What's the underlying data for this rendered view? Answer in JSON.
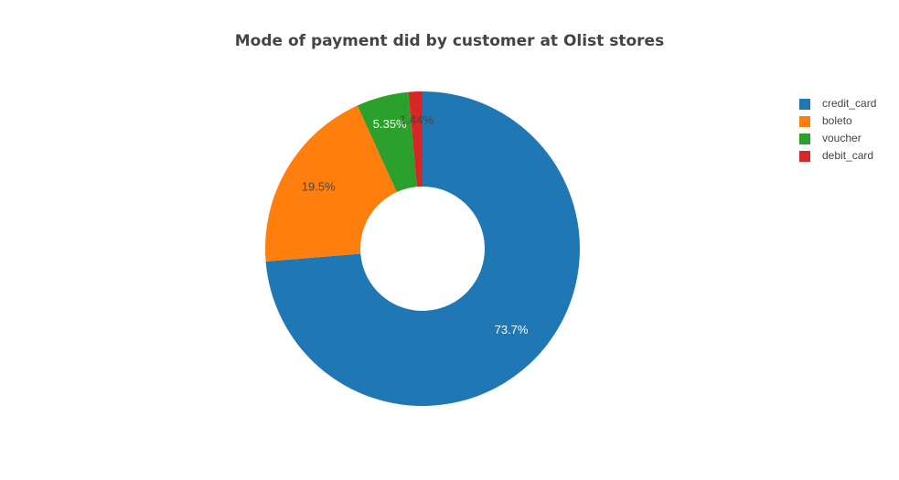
{
  "chart_data": {
    "type": "pie",
    "hole": true,
    "title": "Mode of payment did by customer at Olist stores",
    "categories": [
      "credit_card",
      "boleto",
      "voucher",
      "debit_card"
    ],
    "values": [
      73.7,
      19.5,
      5.35,
      1.44
    ],
    "labels": [
      "73.7%",
      "19.5%",
      "5.35%",
      "1.44%"
    ],
    "colors": [
      "#1f77b4",
      "#ff7f0e",
      "#2ca02c",
      "#d62728"
    ],
    "label_text_colors": [
      "#ffffff",
      "#444444",
      "#ffffff",
      "#444444"
    ],
    "legend_position": "top-right",
    "direction": "clockwise",
    "start_angle": "top"
  }
}
